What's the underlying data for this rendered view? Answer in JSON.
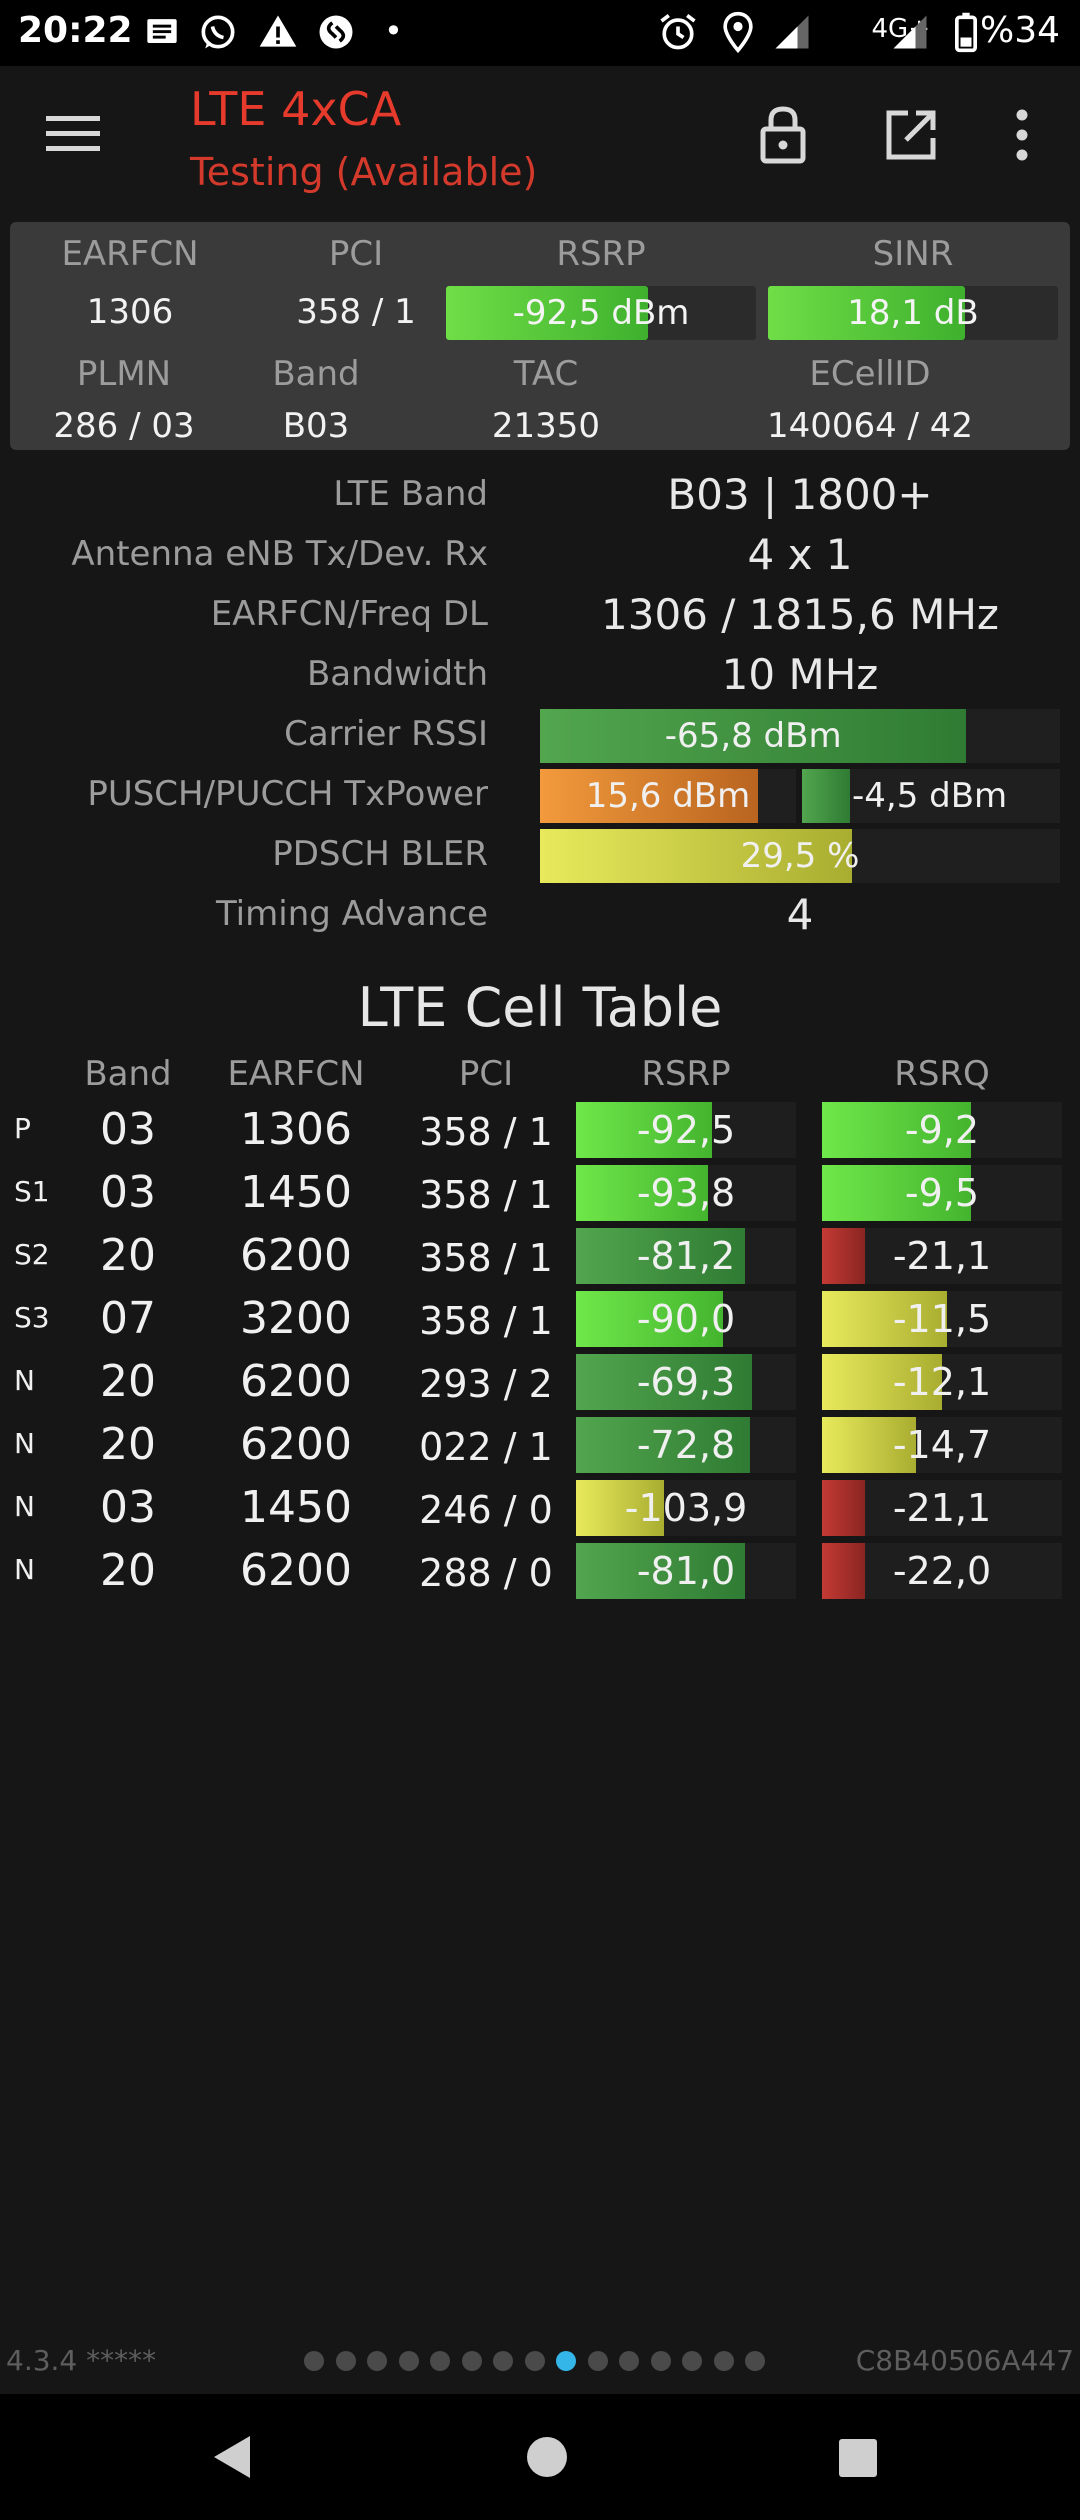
{
  "status_bar": {
    "time": "20:22",
    "network": "4G+",
    "battery": "%34",
    "notification_dot": "•",
    "icons": [
      "messages-icon",
      "whatsapp-icon",
      "warning-icon",
      "shazam-icon",
      "alarm-icon",
      "location-icon",
      "signal-icon",
      "signal-icon",
      "battery-icon"
    ]
  },
  "app_bar": {
    "title": "LTE 4xCA",
    "subtitle": "Testing (Available)",
    "menu_icon": "menu-icon",
    "lock_icon": "lock-icon",
    "external_icon": "open-external-icon",
    "overflow_icon": "more-vert-icon"
  },
  "summary": {
    "earfcn_label": "EARFCN",
    "pci_label": "PCI",
    "rsrp_label": "RSRP",
    "sinr_label": "SINR",
    "earfcn": "1306",
    "pci": "358 / 1",
    "rsrp": "-92,5 dBm",
    "rsrp_level": 0.65,
    "sinr": "18,1 dB",
    "sinr_level": 0.68,
    "plmn_label": "PLMN",
    "band_label": "Band",
    "tac_label": "TAC",
    "ecellid_label": "ECellID",
    "plmn": "286 / 03",
    "band": "B03",
    "tac": "21350",
    "ecellid": "140064 / 42"
  },
  "details": {
    "lte_band_label": "LTE Band",
    "lte_band": "B03 | 1800+",
    "antenna_label": "Antenna eNB Tx/Dev. Rx",
    "antenna": "4 x 1",
    "earfcn_freq_label": "EARFCN/Freq DL",
    "earfcn_freq": "1306 / 1815,6 MHz",
    "bandwidth_label": "Bandwidth",
    "bandwidth": "10 MHz",
    "rssi_label": "Carrier RSSI",
    "rssi": "-65,8 dBm",
    "rssi_level": 0.82,
    "txpower_label": "PUSCH/PUCCH TxPower",
    "pusch": "15,6 dBm",
    "pusch_level": 0.85,
    "pucch": "-4,5 dBm",
    "pucch_level": 0.3,
    "bler_label": "PDSCH BLER",
    "bler": "29,5 %",
    "bler_level": 0.6,
    "ta_label": "Timing Advance",
    "ta": "4"
  },
  "cell_table": {
    "title": "LTE Cell Table",
    "headers": [
      "Band",
      "EARFCN",
      "PCI",
      "RSRP",
      "RSRQ"
    ],
    "rows": [
      {
        "type": "P",
        "band": "03",
        "earfcn": "1306",
        "pci": "358 / 1",
        "rsrp": "-92,5",
        "rsrp_level": 0.62,
        "rsrp_color": "green",
        "rsrq": "-9,2",
        "rsrq_level": 0.62,
        "rsrq_color": "green"
      },
      {
        "type": "S1",
        "band": "03",
        "earfcn": "1450",
        "pci": "358 / 1",
        "rsrp": "-93,8",
        "rsrp_level": 0.6,
        "rsrp_color": "green",
        "rsrq": "-9,5",
        "rsrq_level": 0.62,
        "rsrq_color": "green"
      },
      {
        "type": "S2",
        "band": "20",
        "earfcn": "6200",
        "pci": "358 / 1",
        "rsrp": "-81,2",
        "rsrp_level": 0.77,
        "rsrp_color": "dgreen",
        "rsrq": "-21,1",
        "rsrq_level": 0.18,
        "rsrq_color": "red"
      },
      {
        "type": "S3",
        "band": "07",
        "earfcn": "3200",
        "pci": "358 / 1",
        "rsrp": "-90,0",
        "rsrp_level": 0.67,
        "rsrp_color": "green",
        "rsrq": "-11,5",
        "rsrq_level": 0.52,
        "rsrq_color": "yellow"
      },
      {
        "type": "N",
        "band": "20",
        "earfcn": "6200",
        "pci": "293 / 2",
        "rsrp": "-69,3",
        "rsrp_level": 0.8,
        "rsrp_color": "dgreen",
        "rsrq": "-12,1",
        "rsrq_level": 0.5,
        "rsrq_color": "yellow"
      },
      {
        "type": "N",
        "band": "20",
        "earfcn": "6200",
        "pci": "022 / 1",
        "rsrp": "-72,8",
        "rsrp_level": 0.79,
        "rsrp_color": "dgreen",
        "rsrq": "-14,7",
        "rsrq_level": 0.39,
        "rsrq_color": "yellow"
      },
      {
        "type": "N",
        "band": "03",
        "earfcn": "1450",
        "pci": "246 / 0",
        "rsrp": "-103,9",
        "rsrp_level": 0.4,
        "rsrp_color": "yellow",
        "rsrq": "-21,1",
        "rsrq_level": 0.18,
        "rsrq_color": "red"
      },
      {
        "type": "N",
        "band": "20",
        "earfcn": "6200",
        "pci": "288 / 0",
        "rsrp": "-81,0",
        "rsrp_level": 0.77,
        "rsrp_color": "dgreen",
        "rsrq": "-22,0",
        "rsrq_level": 0.18,
        "rsrq_color": "red"
      }
    ]
  },
  "footer": {
    "version": "4.3.4 *****",
    "device_id": "C8B40506A447",
    "page_count": 15,
    "active_page": 8
  },
  "nav_bar": {
    "back_icon": "back-icon",
    "home_icon": "home-icon",
    "recents_icon": "recents-icon"
  }
}
